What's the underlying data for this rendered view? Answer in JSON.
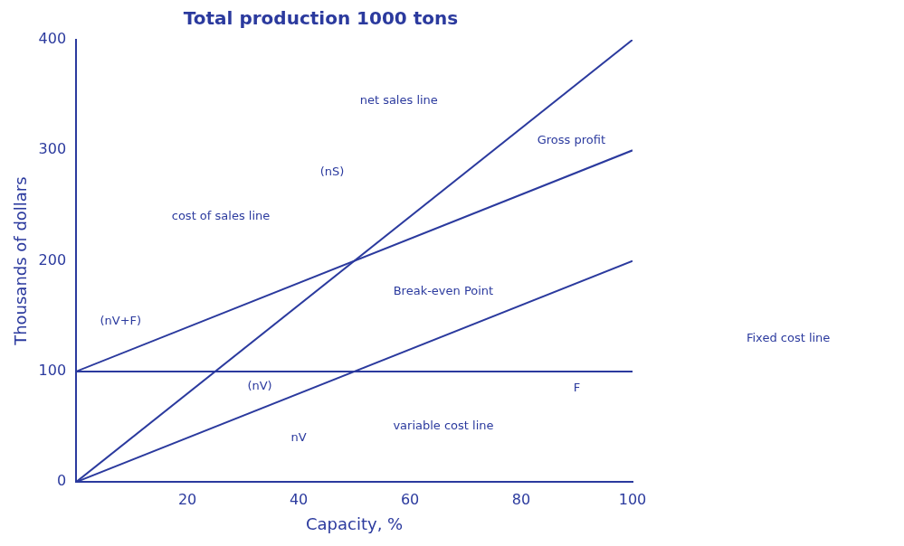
{
  "chart_data": {
    "type": "line",
    "title": "Total production 1000 tons",
    "x_label": "Capacity, %",
    "y_label": "Thousands of dollars",
    "x": [
      0,
      100
    ],
    "series": [
      {
        "name": "net sales line",
        "color": "#2b3a9e",
        "values": [
          0,
          400
        ]
      },
      {
        "name": "cost of sales line",
        "color": "#2b3a9e",
        "values": [
          100,
          300
        ]
      },
      {
        "name": "Fixed cost line",
        "color": "#2b3a9e",
        "values": [
          100,
          100
        ]
      },
      {
        "name": "variable cost line",
        "color": "#2b3a9e",
        "values": [
          0,
          200
        ]
      }
    ],
    "xlim": [
      0,
      100
    ],
    "xticks": [
      20,
      40,
      60,
      80,
      100
    ],
    "ylim": [
      0,
      400
    ],
    "yticks": [
      0,
      100,
      200,
      300,
      400
    ],
    "grid": false,
    "annotations": [
      {
        "text": "net sales line",
        "x": 58,
        "y": 345
      },
      {
        "text": "(nS)",
        "x": 46,
        "y": 280
      },
      {
        "text": "cost of sales line",
        "x": 26,
        "y": 240
      },
      {
        "text": "Gross profit",
        "x": 89,
        "y": 309
      },
      {
        "text": "(nV+F)",
        "x": 8,
        "y": 145
      },
      {
        "text": "Break-even Point",
        "x": 66,
        "y": 172
      },
      {
        "text": "(nV)",
        "x": 33,
        "y": 86
      },
      {
        "text": "variable cost line",
        "x": 66,
        "y": 50
      },
      {
        "text": "nV",
        "x": 40,
        "y": 40
      },
      {
        "text": "Fixed cost line",
        "x": 128,
        "y": 130
      },
      {
        "text": "F",
        "x": 90,
        "y": 85
      }
    ]
  }
}
